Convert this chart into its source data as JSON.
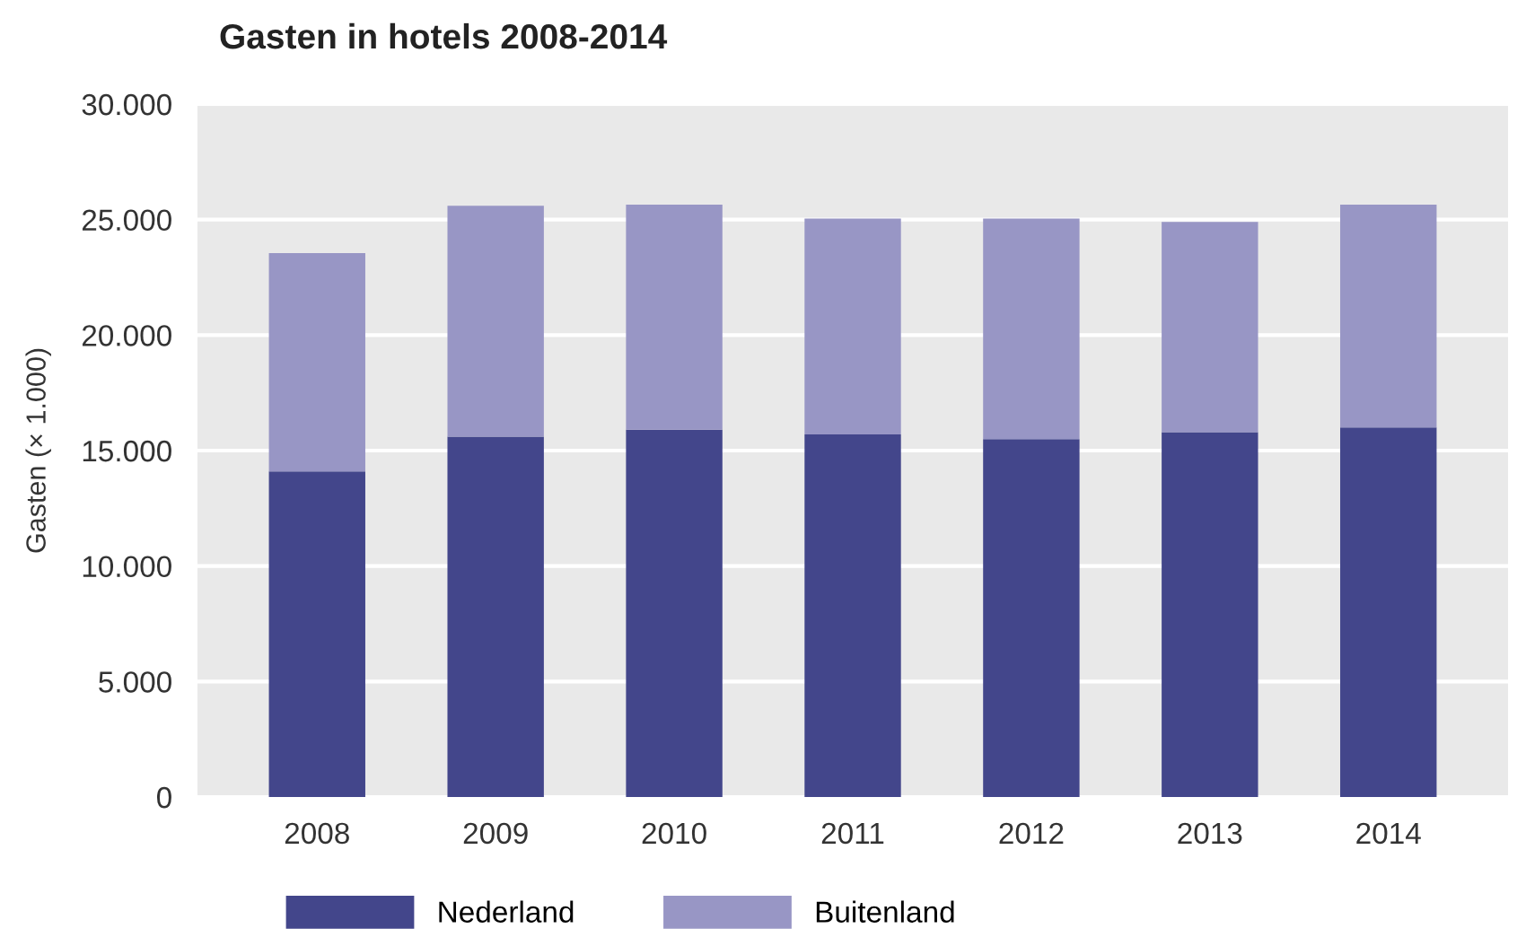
{
  "chart_data": {
    "type": "bar",
    "title": "Gasten in hotels 2008-2014",
    "ylabel": "Gasten (× 1.000)",
    "stacked": true,
    "categories": [
      "2008",
      "2009",
      "2010",
      "2011",
      "2012",
      "2013",
      "2014"
    ],
    "series": [
      {
        "name": "Nederland",
        "color": "#43468b",
        "values": [
          14100,
          15600,
          15900,
          15700,
          15500,
          15800,
          16000
        ]
      },
      {
        "name": "Buitenland",
        "color": "#9896c5",
        "values": [
          9450,
          10000,
          9750,
          9350,
          9550,
          9100,
          9650
        ]
      }
    ],
    "ylim": [
      0,
      30000
    ],
    "yticks": [
      {
        "value": 0,
        "label": "0"
      },
      {
        "value": 5000,
        "label": "5.000"
      },
      {
        "value": 10000,
        "label": "10.000"
      },
      {
        "value": 15000,
        "label": "15.000"
      },
      {
        "value": 20000,
        "label": "20.000"
      },
      {
        "value": 25000,
        "label": "25.000"
      },
      {
        "value": 30000,
        "label": "30.000"
      }
    ],
    "grid": "y",
    "legend": "bottom"
  }
}
